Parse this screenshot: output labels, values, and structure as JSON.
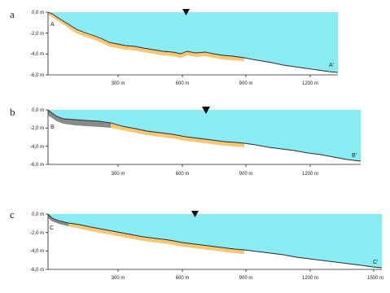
{
  "colors": {
    "water": "#88ecf2",
    "sediment": "#f8c570",
    "rock": "#8a8a8a",
    "axis": "#222222",
    "seabed_line": "#2a2a2a",
    "sea_level_marker": "#111111"
  },
  "panels": [
    {
      "letter": "a",
      "start_label": "A",
      "end_label": "A'",
      "y_ticks": [
        "0,0 m",
        "-2,0 m",
        "-4,0 m",
        "-6,0 m"
      ],
      "x_ticks": [
        "300 m",
        "600 m",
        "900 m",
        "1200 m"
      ]
    },
    {
      "letter": "b",
      "start_label": "B",
      "end_label": "B'",
      "y_ticks": [
        "0,0 m",
        "-2,0 m",
        "-4,0 m",
        "-6,0 m"
      ],
      "x_ticks": [
        "300 m",
        "600 m",
        "900 m",
        "1200 m"
      ]
    },
    {
      "letter": "c",
      "start_label": "C",
      "end_label": "C'",
      "y_ticks": [
        "0,0 m",
        "-2,0 m",
        "-4,0 m",
        "-6,0 m"
      ],
      "x_ticks": [
        "300 m",
        "600 m",
        "900 m",
        "1200 m",
        "1500 m"
      ]
    }
  ]
}
